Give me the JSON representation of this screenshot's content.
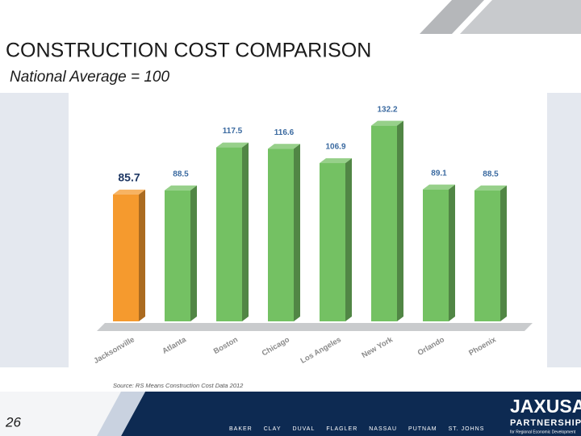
{
  "title": "CONSTRUCTION COST COMPARISON",
  "subtitle": "National Average = 100",
  "chart_data": {
    "type": "bar",
    "categories": [
      "Jacksonville",
      "Atlanta",
      "Boston",
      "Chicago",
      "Los Angeles",
      "New York",
      "Orlando",
      "Phoenix"
    ],
    "values": [
      85.7,
      88.5,
      117.5,
      116.6,
      106.9,
      132.2,
      89.1,
      88.5
    ],
    "colors": [
      "#f59a2e",
      "#74c163",
      "#74c163",
      "#74c163",
      "#74c163",
      "#74c163",
      "#74c163",
      "#74c163"
    ],
    "ylim": [
      0,
      150
    ],
    "source": "Source: RS Means Construction Cost Data 2012"
  },
  "page_number": "26",
  "footer": {
    "counties": [
      "BAKER",
      "CLAY",
      "DUVAL",
      "FLAGLER",
      "NASSAU",
      "PUTNAM",
      "ST. JOHNS"
    ]
  },
  "logo": {
    "name": "JAXUSA",
    "line2": "PARTNERSHIP",
    "tagline": "for Regional Economic Development"
  }
}
